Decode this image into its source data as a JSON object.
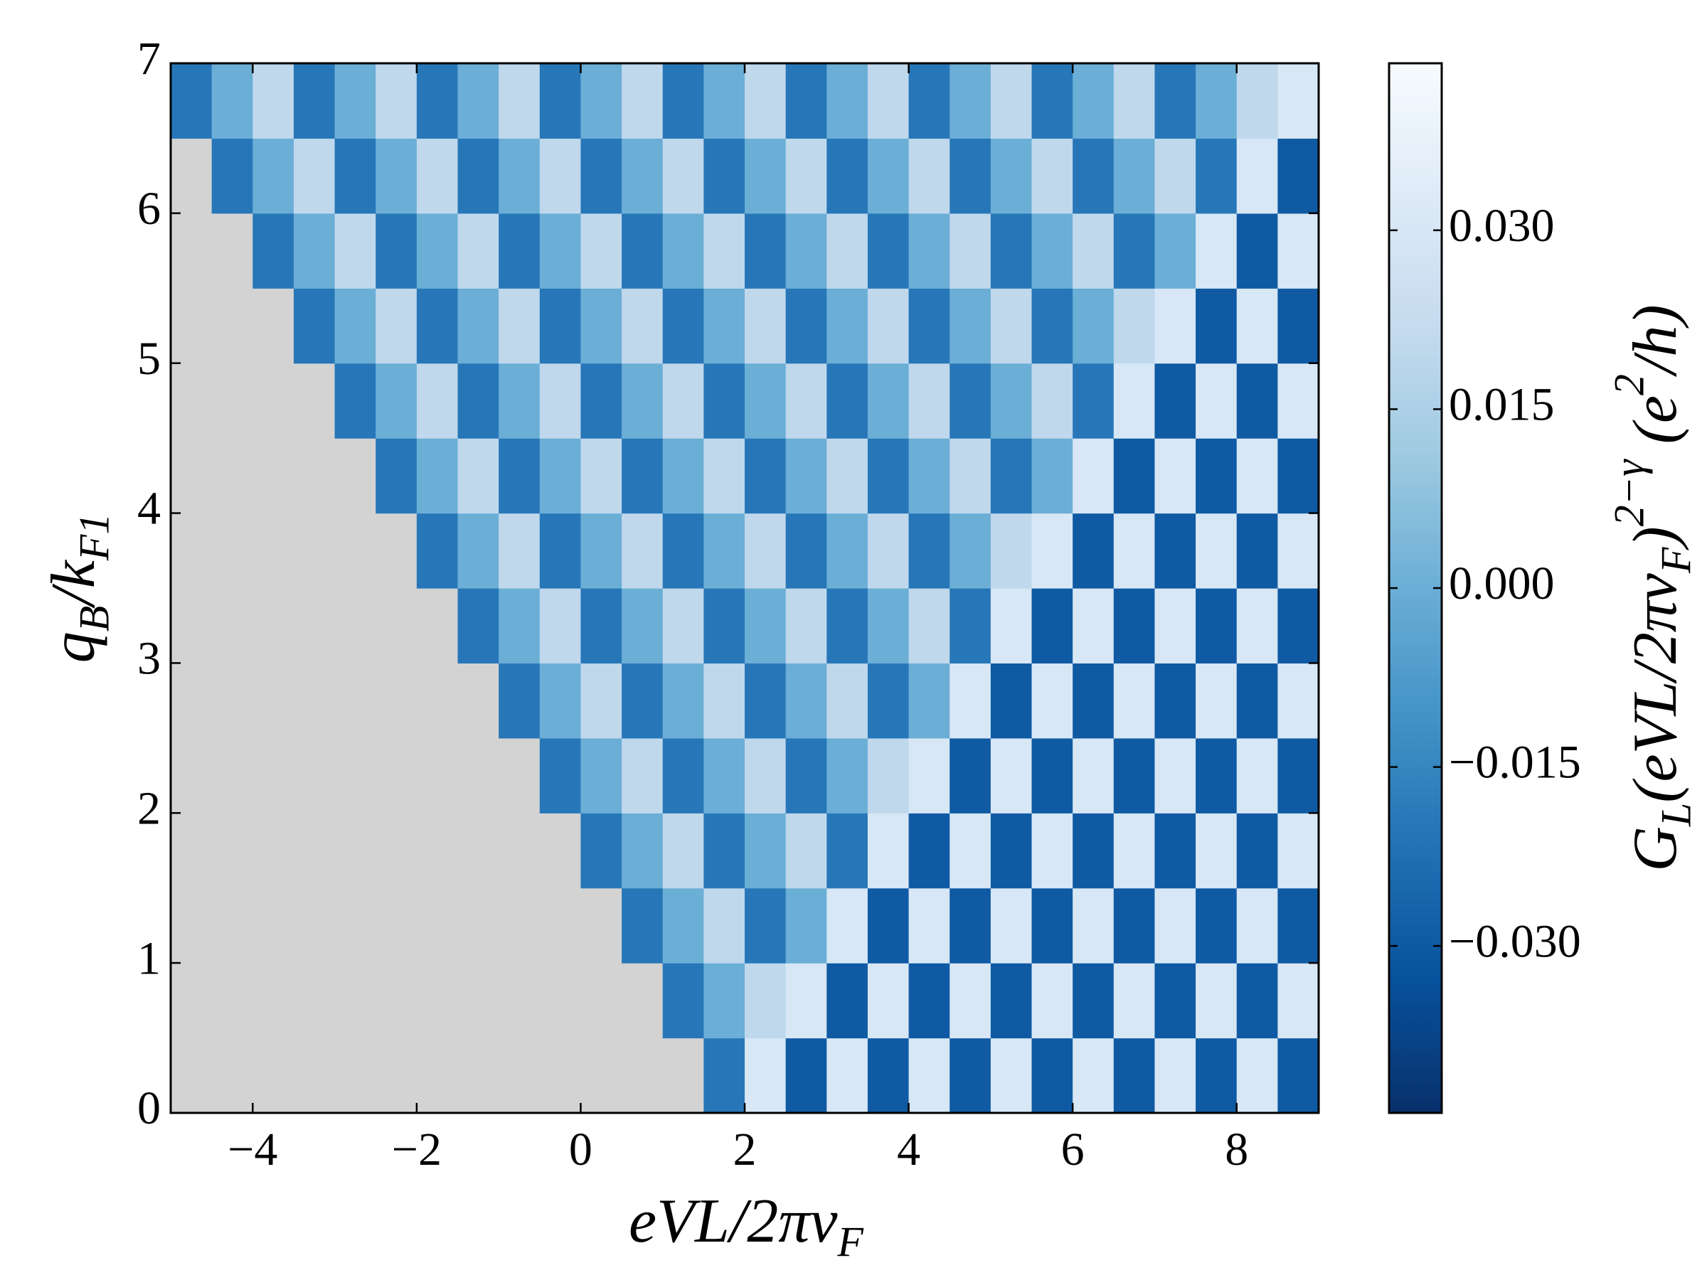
{
  "chart_data": {
    "type": "heatmap",
    "x_label": [
      {
        "t": "eVL/2πv"
      },
      {
        "t": "F",
        "shift": "sub"
      }
    ],
    "y_label": [
      {
        "t": "q"
      },
      {
        "t": "B",
        "shift": "sub"
      },
      {
        "t": "/k"
      },
      {
        "t": "F1",
        "shift": "sub"
      }
    ],
    "colorbar_label": [
      {
        "t": "G"
      },
      {
        "t": "L",
        "shift": "sub"
      },
      {
        "t": "(eVL/2πv"
      },
      {
        "t": "F",
        "shift": "sub"
      },
      {
        "t": ")"
      },
      {
        "t": "2−γ",
        "shift": "sup"
      },
      {
        "t": " (e"
      },
      {
        "t": "2",
        "shift": "sup"
      },
      {
        "t": "/h)"
      }
    ],
    "x": [
      -4.75,
      -4.25,
      -3.75,
      -3.25,
      -2.75,
      -2.25,
      -1.75,
      -1.25,
      -0.75,
      -0.25,
      0.25,
      0.75,
      1.25,
      1.75,
      2.25,
      2.75,
      3.25,
      3.75,
      4.25,
      4.75,
      5.25,
      5.75,
      6.25,
      6.75,
      7.25,
      7.75,
      8.25,
      8.75
    ],
    "y": [
      0.25,
      0.75,
      1.25,
      1.75,
      2.25,
      2.75,
      3.25,
      3.75,
      4.25,
      4.75,
      5.25,
      5.75,
      6.25,
      6.75
    ],
    "z": [
      [
        null,
        null,
        null,
        null,
        null,
        null,
        null,
        null,
        null,
        null,
        null,
        null,
        null,
        -0.02,
        0.03,
        -0.03,
        0.03,
        -0.03,
        0.03,
        -0.03,
        0.03,
        -0.03,
        0.03,
        -0.03,
        0.03,
        -0.03,
        0.03,
        -0.03
      ],
      [
        null,
        null,
        null,
        null,
        null,
        null,
        null,
        null,
        null,
        null,
        null,
        null,
        -0.02,
        0,
        0.02,
        0.03,
        -0.03,
        0.03,
        -0.03,
        0.03,
        -0.03,
        0.03,
        -0.03,
        0.03,
        -0.03,
        0.03,
        -0.03,
        0.03
      ],
      [
        null,
        null,
        null,
        null,
        null,
        null,
        null,
        null,
        null,
        null,
        null,
        -0.02,
        0,
        0.02,
        -0.02,
        0,
        0.03,
        -0.03,
        0.03,
        -0.03,
        0.03,
        -0.03,
        0.03,
        -0.03,
        0.03,
        -0.03,
        0.03,
        -0.03
      ],
      [
        null,
        null,
        null,
        null,
        null,
        null,
        null,
        null,
        null,
        null,
        -0.02,
        0,
        0.02,
        -0.02,
        0,
        0.02,
        -0.02,
        0.03,
        -0.03,
        0.03,
        -0.03,
        0.03,
        -0.03,
        0.03,
        -0.03,
        0.03,
        -0.03,
        0.03
      ],
      [
        null,
        null,
        null,
        null,
        null,
        null,
        null,
        null,
        null,
        -0.02,
        0,
        0.02,
        -0.02,
        0,
        0.02,
        -0.02,
        0,
        0.02,
        0.03,
        -0.03,
        0.03,
        -0.03,
        0.03,
        -0.03,
        0.03,
        -0.03,
        0.03,
        -0.03
      ],
      [
        null,
        null,
        null,
        null,
        null,
        null,
        null,
        null,
        -0.02,
        0,
        0.02,
        -0.02,
        0,
        0.02,
        -0.02,
        0,
        0.02,
        -0.02,
        0,
        0.03,
        -0.03,
        0.03,
        -0.03,
        0.03,
        -0.03,
        0.03,
        -0.03,
        0.03
      ],
      [
        null,
        null,
        null,
        null,
        null,
        null,
        null,
        -0.02,
        0,
        0.02,
        -0.02,
        0,
        0.02,
        -0.02,
        0,
        0.02,
        -0.02,
        0,
        0.02,
        -0.02,
        0.03,
        -0.03,
        0.03,
        -0.03,
        0.03,
        -0.03,
        0.03,
        -0.03
      ],
      [
        null,
        null,
        null,
        null,
        null,
        null,
        -0.02,
        0,
        0.02,
        -0.02,
        0,
        0.02,
        -0.02,
        0,
        0.02,
        -0.02,
        0,
        0.02,
        -0.02,
        0,
        0.02,
        0.03,
        -0.03,
        0.03,
        -0.03,
        0.03,
        -0.03,
        0.03
      ],
      [
        null,
        null,
        null,
        null,
        null,
        -0.02,
        0,
        0.02,
        -0.02,
        0,
        0.02,
        -0.02,
        0,
        0.02,
        -0.02,
        0,
        0.02,
        -0.02,
        0,
        0.02,
        -0.02,
        0,
        0.03,
        -0.03,
        0.03,
        -0.03,
        0.03,
        -0.03
      ],
      [
        null,
        null,
        null,
        null,
        -0.02,
        0,
        0.02,
        -0.02,
        0,
        0.02,
        -0.02,
        0,
        0.02,
        -0.02,
        0,
        0.02,
        -0.02,
        0,
        0.02,
        -0.02,
        0,
        0.02,
        -0.02,
        0.03,
        -0.03,
        0.03,
        -0.03,
        0.03
      ],
      [
        null,
        null,
        null,
        -0.02,
        0,
        0.02,
        -0.02,
        0,
        0.02,
        -0.02,
        0,
        0.02,
        -0.02,
        0,
        0.02,
        -0.02,
        0,
        0.02,
        -0.02,
        0,
        0.02,
        -0.02,
        0,
        0.02,
        0.03,
        -0.03,
        0.03,
        -0.03
      ],
      [
        null,
        null,
        -0.02,
        0,
        0.02,
        -0.02,
        0,
        0.02,
        -0.02,
        0,
        0.02,
        -0.02,
        0,
        0.02,
        -0.02,
        0,
        0.02,
        -0.02,
        0,
        0.02,
        -0.02,
        0,
        0.02,
        -0.02,
        0,
        0.03,
        -0.03,
        0.03
      ],
      [
        null,
        -0.02,
        0,
        0.02,
        -0.02,
        0,
        0.02,
        -0.02,
        0,
        0.02,
        -0.02,
        0,
        0.02,
        -0.02,
        0,
        0.02,
        -0.02,
        0,
        0.02,
        -0.02,
        0,
        0.02,
        -0.02,
        0,
        0.02,
        -0.02,
        0.03,
        -0.03
      ],
      [
        -0.02,
        0,
        0.02,
        -0.02,
        0,
        0.02,
        -0.02,
        0,
        0.02,
        -0.02,
        0,
        0.02,
        -0.02,
        0,
        0.02,
        -0.02,
        0,
        0.02,
        -0.02,
        0,
        0.02,
        -0.02,
        0,
        0.02,
        -0.02,
        0,
        0.02,
        0.03
      ]
    ],
    "xlim": [
      -5,
      9
    ],
    "ylim": [
      0,
      7
    ],
    "xticks": [
      {
        "value": -4,
        "label": "−4"
      },
      {
        "value": -2,
        "label": "−2"
      },
      0,
      2,
      4,
      6,
      8
    ],
    "yticks": [
      0,
      1,
      2,
      3,
      4,
      5,
      6,
      7
    ],
    "clim": [
      -0.044,
      0.044
    ],
    "cticks": [
      {
        "value": -0.03,
        "label": "−0.030"
      },
      {
        "value": -0.015,
        "label": "−0.015"
      },
      {
        "value": 0,
        "label": "0.000"
      },
      {
        "value": 0.015,
        "label": "0.015"
      },
      {
        "value": 0.03,
        "label": "0.030"
      }
    ],
    "colormap": "Blues",
    "nan_color": "#d3d3d3"
  }
}
